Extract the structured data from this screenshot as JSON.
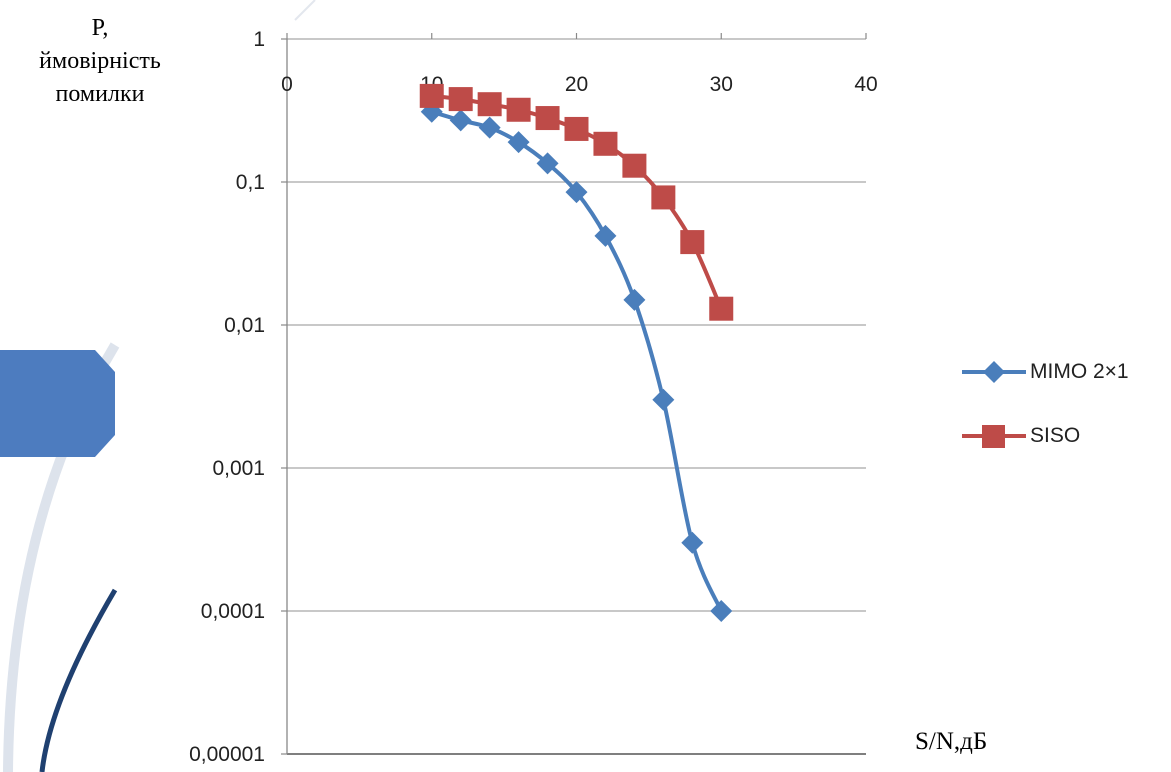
{
  "chart_data": {
    "type": "line",
    "ylabel_lines": [
      "P,",
      "ймовірність",
      "помилки"
    ],
    "xlabel": "S/N,дБ",
    "x_ticks": [
      "0",
      "10",
      "20",
      "30",
      "40"
    ],
    "y_ticks": [
      "1",
      "0,1",
      "0,01",
      "0,001",
      "0,0001",
      "0,00001"
    ],
    "xlim": [
      0,
      40
    ],
    "ylim": [
      1e-05,
      1
    ],
    "y_scale": "log",
    "grid": "horizontal",
    "legend_position": "right",
    "x_axis_position": "top",
    "series": [
      {
        "name": "MIMO 2×1",
        "color": "#4a7ebb",
        "marker": "diamond",
        "x": [
          10,
          12,
          14,
          16,
          18,
          20,
          22,
          24,
          26,
          28,
          30
        ],
        "y": [
          0.31,
          0.27,
          0.24,
          0.19,
          0.135,
          0.085,
          0.042,
          0.015,
          0.003,
          0.0003,
          0.0001
        ]
      },
      {
        "name": "SISO",
        "color": "#be4b48",
        "marker": "square",
        "x": [
          10,
          12,
          14,
          16,
          18,
          20,
          22,
          24,
          26,
          28,
          30
        ],
        "y": [
          0.4,
          0.38,
          0.35,
          0.32,
          0.28,
          0.235,
          0.185,
          0.13,
          0.078,
          0.038,
          0.013
        ]
      }
    ]
  }
}
